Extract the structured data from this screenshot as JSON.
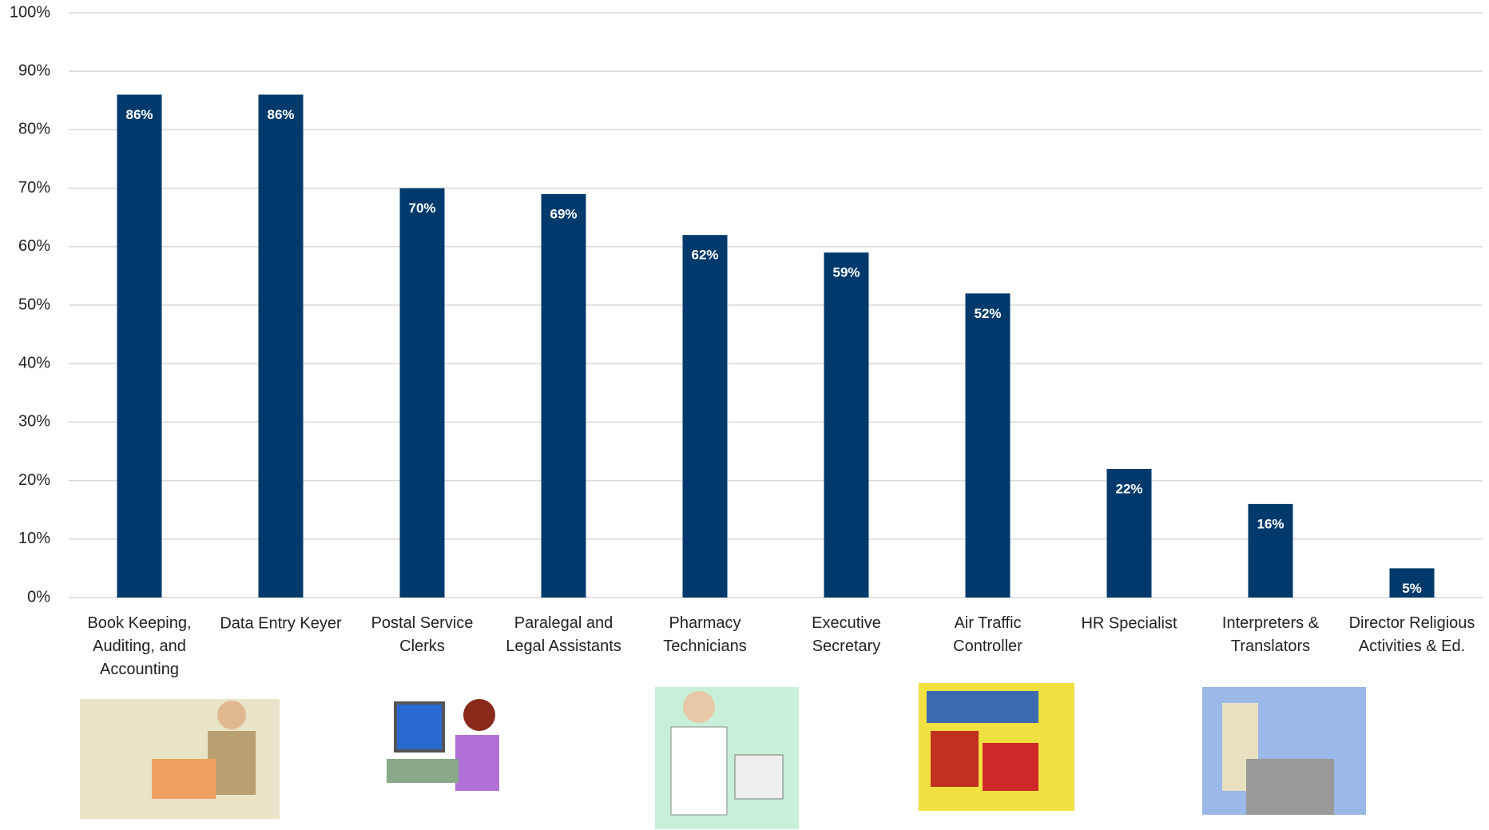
{
  "chart_data": {
    "type": "bar",
    "categories": [
      "Book Keeping,\nAuditing, and\nAccounting",
      "Data Entry Keyer",
      "Postal Service\nClerks",
      "Paralegal and\nLegal Assistants",
      "Pharmacy\nTechnicians",
      "Executive\nSecretary",
      "Air Traffic\nController",
      "HR Specialist",
      "Interpreters &\nTranslators",
      "Director Religious\nActivities & Ed."
    ],
    "values": [
      86,
      86,
      70,
      69,
      62,
      59,
      52,
      22,
      16,
      5
    ],
    "value_labels": [
      "86%",
      "86%",
      "70%",
      "69%",
      "62%",
      "59%",
      "52%",
      "22%",
      "16%",
      "5%"
    ],
    "color": "#003a6c",
    "ylim": [
      0,
      100
    ],
    "yticks": [
      {
        "value": 0,
        "label": "0%"
      },
      {
        "value": 10,
        "label": "10%"
      },
      {
        "value": 20,
        "label": "20%"
      },
      {
        "value": 30,
        "label": "30%"
      },
      {
        "value": 40,
        "label": "40%"
      },
      {
        "value": 50,
        "label": "50%"
      },
      {
        "value": 60,
        "label": "60%"
      },
      {
        "value": 70,
        "label": "70%"
      },
      {
        "value": 80,
        "label": "80%"
      },
      {
        "value": 90,
        "label": "90%"
      },
      {
        "value": 100,
        "label": "100%"
      }
    ],
    "grid": true
  }
}
